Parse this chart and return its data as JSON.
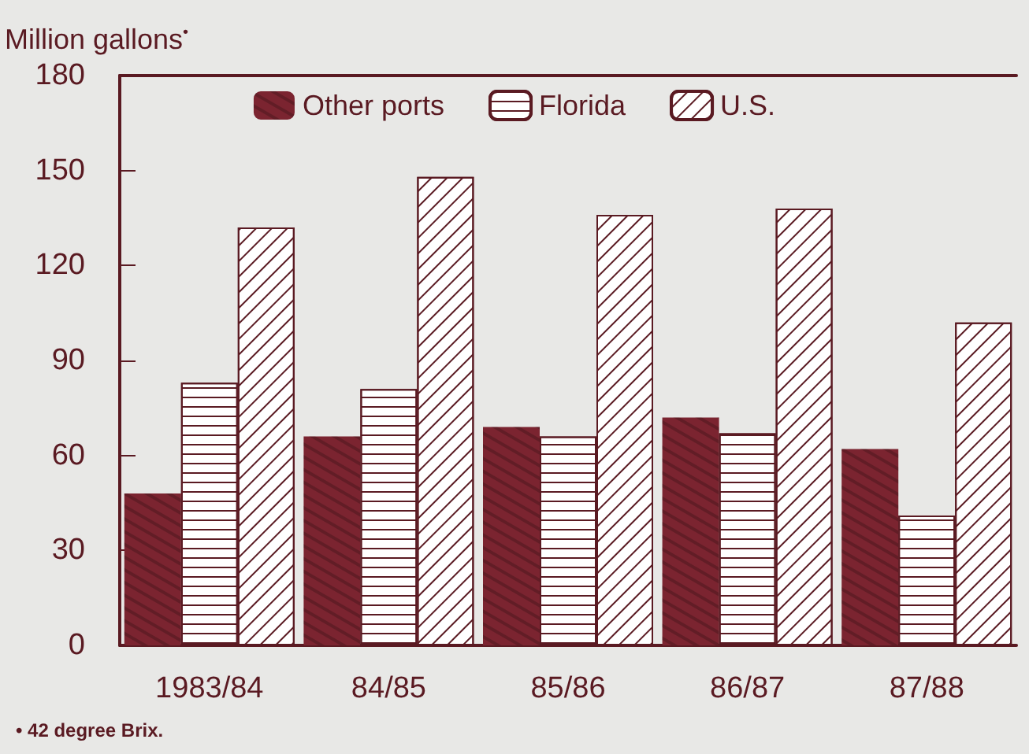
{
  "chart_data": {
    "type": "bar",
    "ylabel": "Million gallons$^{•}$",
    "categories": [
      "1983/84",
      "84/85",
      "85/86",
      "86/87",
      "87/88"
    ],
    "series": [
      {
        "name": "Other ports",
        "color": "#7b2430",
        "values": [
          48,
          66,
          69,
          72,
          62
        ]
      },
      {
        "name": "Florida",
        "color": "#ffffff",
        "values": [
          83,
          81,
          66,
          67,
          41
        ]
      },
      {
        "name": "U.S.",
        "color": "#ffffff",
        "values": [
          132,
          148,
          136,
          138,
          102
        ]
      }
    ],
    "ylim": [
      0,
      180
    ],
    "yticks": [
      0,
      30,
      60,
      90,
      120,
      150,
      180
    ],
    "grid": false,
    "legend": "top",
    "annotations": [
      "• 42 degree Brix."
    ]
  }
}
